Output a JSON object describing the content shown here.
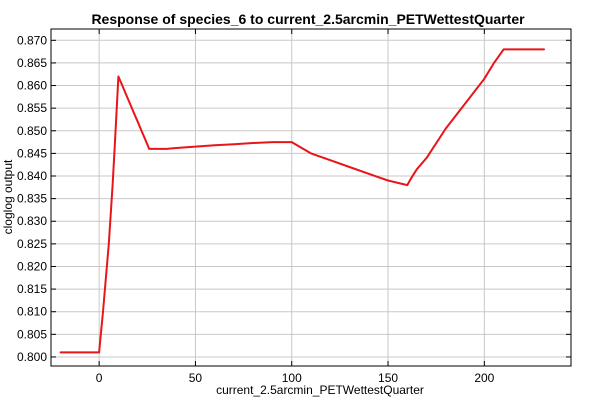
{
  "chart_data": {
    "type": "line",
    "title": "Response of species_6 to current_2.5arcmin_PETWettestQuarter",
    "xlabel": "current_2.5arcmin_PETWettestQuarter",
    "ylabel": "cloglog output",
    "xlim": [
      -25,
      245
    ],
    "ylim": [
      0.798,
      0.8725
    ],
    "x_ticks": [
      0,
      50,
      100,
      150,
      200
    ],
    "y_ticks": [
      0.8,
      0.805,
      0.81,
      0.815,
      0.82,
      0.825,
      0.83,
      0.835,
      0.84,
      0.845,
      0.85,
      0.855,
      0.86,
      0.865,
      0.87
    ],
    "grid": true,
    "series_color": "#e8151b",
    "series": [
      {
        "x": [
          -20,
          0,
          2,
          5,
          7,
          8,
          10,
          12,
          14,
          16,
          18,
          20,
          22,
          24,
          26,
          28,
          30,
          35,
          40,
          50,
          60,
          70,
          80,
          90,
          100,
          110,
          120,
          130,
          140,
          150,
          160,
          162,
          165,
          170,
          180,
          190,
          200,
          205,
          210,
          215,
          231
        ],
        "y": [
          0.801,
          0.801,
          0.81,
          0.825,
          0.838,
          0.846,
          0.862,
          0.86,
          0.858,
          0.856,
          0.854,
          0.852,
          0.85,
          0.848,
          0.846,
          0.846,
          0.846,
          0.846,
          0.8462,
          0.8465,
          0.8468,
          0.847,
          0.8473,
          0.8475,
          0.8475,
          0.845,
          0.8435,
          0.842,
          0.8405,
          0.839,
          0.838,
          0.8395,
          0.8415,
          0.844,
          0.8505,
          0.856,
          0.8615,
          0.865,
          0.868,
          0.868,
          0.868
        ]
      }
    ]
  }
}
